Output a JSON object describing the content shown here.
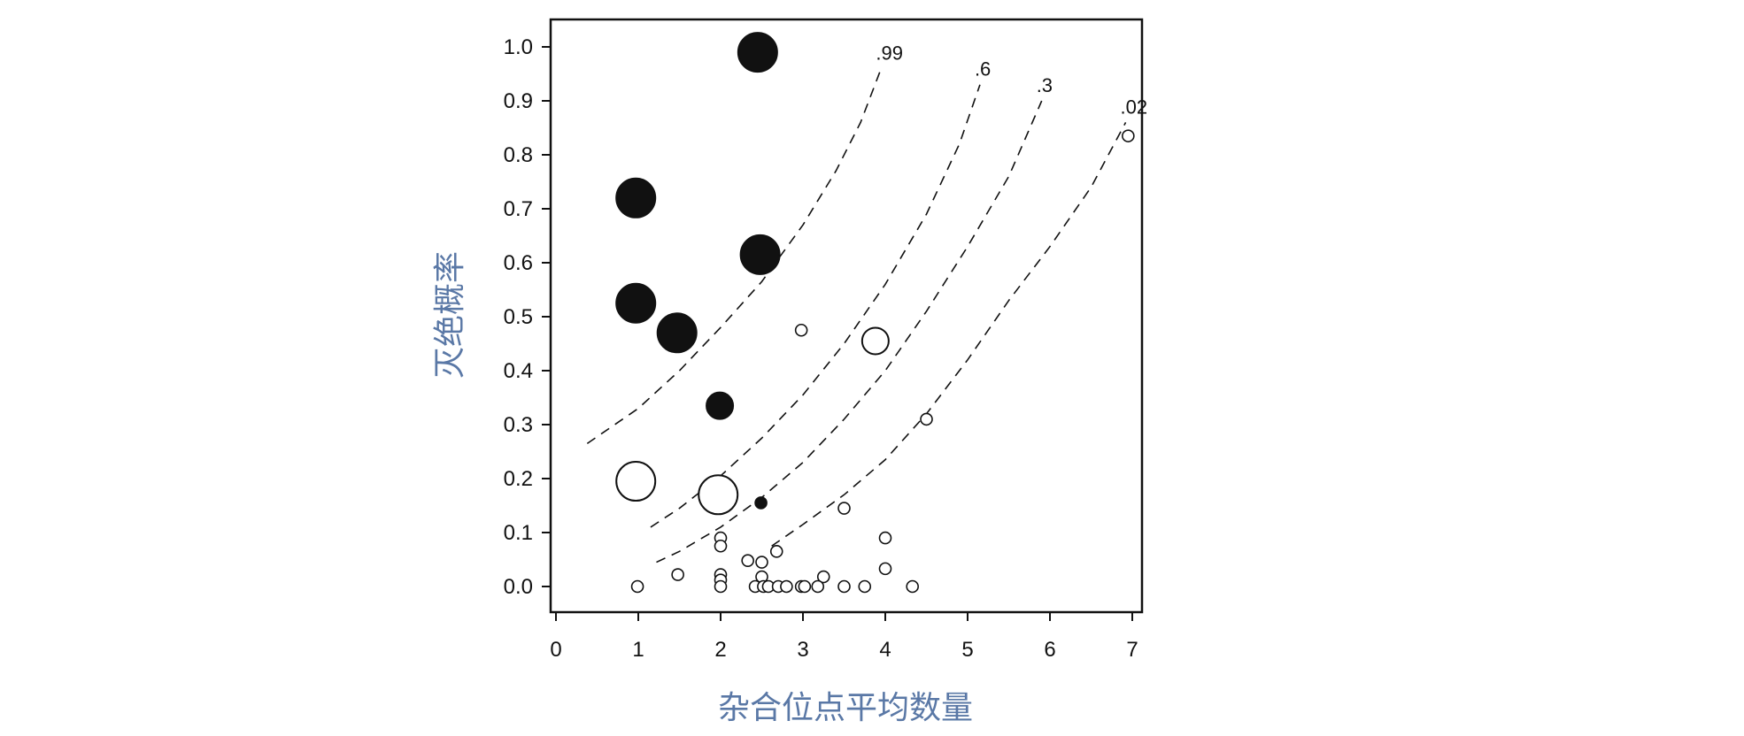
{
  "chart_data": {
    "type": "scatter",
    "title": "",
    "xlabel": "杂合位点平均数量",
    "ylabel": "灭绝概率",
    "xlim": [
      0,
      7.3
    ],
    "ylim": [
      -0.05,
      1.05
    ],
    "xticks": [
      "0",
      "1",
      "2",
      "3",
      "4",
      "5",
      "6",
      "7"
    ],
    "yticks": [
      "0.0",
      "0.1",
      "0.2",
      "0.3",
      "0.4",
      "0.5",
      "0.6",
      "0.7",
      "0.8",
      "0.9",
      "1.0"
    ],
    "grid": false,
    "colors": {
      "axis_title": "#5a78a6",
      "ink": "#111111",
      "hollow_fill": "#ffffff"
    },
    "points": [
      {
        "x": 2.45,
        "y": 0.99,
        "size": "large",
        "filled": true
      },
      {
        "x": 0.97,
        "y": 0.72,
        "size": "large",
        "filled": true
      },
      {
        "x": 2.48,
        "y": 0.615,
        "size": "large",
        "filled": true
      },
      {
        "x": 0.97,
        "y": 0.525,
        "size": "large",
        "filled": true
      },
      {
        "x": 1.47,
        "y": 0.47,
        "size": "large",
        "filled": true
      },
      {
        "x": 1.99,
        "y": 0.335,
        "size": "medium",
        "filled": true
      },
      {
        "x": 2.49,
        "y": 0.155,
        "size": "small",
        "filled": true
      },
      {
        "x": 0.97,
        "y": 0.195,
        "size": "large",
        "filled": false
      },
      {
        "x": 1.97,
        "y": 0.17,
        "size": "large",
        "filled": false
      },
      {
        "x": 3.88,
        "y": 0.455,
        "size": "medium",
        "filled": false
      },
      {
        "x": 2.98,
        "y": 0.475,
        "size": "small",
        "filled": false
      },
      {
        "x": 4.5,
        "y": 0.31,
        "size": "small",
        "filled": false
      },
      {
        "x": 6.95,
        "y": 0.835,
        "size": "small",
        "filled": false
      },
      {
        "x": 3.5,
        "y": 0.145,
        "size": "small",
        "filled": false
      },
      {
        "x": 2.0,
        "y": 0.09,
        "size": "small",
        "filled": false
      },
      {
        "x": 2.0,
        "y": 0.075,
        "size": "small",
        "filled": false
      },
      {
        "x": 4.0,
        "y": 0.09,
        "size": "small",
        "filled": false
      },
      {
        "x": 2.68,
        "y": 0.065,
        "size": "small",
        "filled": false
      },
      {
        "x": 2.33,
        "y": 0.048,
        "size": "small",
        "filled": false
      },
      {
        "x": 2.5,
        "y": 0.045,
        "size": "small",
        "filled": false
      },
      {
        "x": 4.0,
        "y": 0.033,
        "size": "small",
        "filled": false
      },
      {
        "x": 1.48,
        "y": 0.022,
        "size": "small",
        "filled": false
      },
      {
        "x": 2.0,
        "y": 0.022,
        "size": "small",
        "filled": false
      },
      {
        "x": 2.0,
        "y": 0.012,
        "size": "small",
        "filled": false
      },
      {
        "x": 2.5,
        "y": 0.018,
        "size": "small",
        "filled": false
      },
      {
        "x": 3.25,
        "y": 0.018,
        "size": "small",
        "filled": false
      },
      {
        "x": 0.99,
        "y": 0.0,
        "size": "small",
        "filled": false
      },
      {
        "x": 2.0,
        "y": 0.0,
        "size": "small",
        "filled": false
      },
      {
        "x": 2.42,
        "y": 0.0,
        "size": "small",
        "filled": false
      },
      {
        "x": 2.52,
        "y": 0.0,
        "size": "small",
        "filled": false
      },
      {
        "x": 2.58,
        "y": 0.0,
        "size": "small",
        "filled": false
      },
      {
        "x": 2.7,
        "y": 0.0,
        "size": "small",
        "filled": false
      },
      {
        "x": 2.8,
        "y": 0.0,
        "size": "small",
        "filled": false
      },
      {
        "x": 2.98,
        "y": 0.0,
        "size": "small",
        "filled": false
      },
      {
        "x": 3.02,
        "y": 0.0,
        "size": "small",
        "filled": false
      },
      {
        "x": 3.18,
        "y": 0.0,
        "size": "small",
        "filled": false
      },
      {
        "x": 3.5,
        "y": 0.0,
        "size": "small",
        "filled": false
      },
      {
        "x": 3.75,
        "y": 0.0,
        "size": "small",
        "filled": false
      },
      {
        "x": 4.33,
        "y": 0.0,
        "size": "small",
        "filled": false
      }
    ],
    "curves": [
      {
        "label": ".99",
        "points": [
          [
            0.38,
            0.265
          ],
          [
            1.0,
            0.33
          ],
          [
            1.5,
            0.4
          ],
          [
            2.0,
            0.48
          ],
          [
            2.5,
            0.565
          ],
          [
            3.0,
            0.67
          ],
          [
            3.4,
            0.77
          ],
          [
            3.7,
            0.86
          ],
          [
            3.95,
            0.96
          ]
        ]
      },
      {
        "label": ".6",
        "points": [
          [
            1.15,
            0.11
          ],
          [
            1.5,
            0.145
          ],
          [
            2.0,
            0.205
          ],
          [
            2.5,
            0.275
          ],
          [
            3.0,
            0.355
          ],
          [
            3.5,
            0.45
          ],
          [
            4.0,
            0.56
          ],
          [
            4.5,
            0.69
          ],
          [
            4.9,
            0.82
          ],
          [
            5.15,
            0.93
          ]
        ]
      },
      {
        "label": ".3",
        "points": [
          [
            1.22,
            0.045
          ],
          [
            1.5,
            0.065
          ],
          [
            2.0,
            0.11
          ],
          [
            2.5,
            0.165
          ],
          [
            3.0,
            0.23
          ],
          [
            3.5,
            0.31
          ],
          [
            4.0,
            0.4
          ],
          [
            4.5,
            0.51
          ],
          [
            5.0,
            0.63
          ],
          [
            5.5,
            0.76
          ],
          [
            5.9,
            0.9
          ]
        ]
      },
      {
        "label": ".02",
        "points": [
          [
            2.62,
            0.075
          ],
          [
            3.0,
            0.115
          ],
          [
            3.5,
            0.17
          ],
          [
            4.0,
            0.235
          ],
          [
            4.5,
            0.32
          ],
          [
            5.0,
            0.42
          ],
          [
            5.5,
            0.53
          ],
          [
            6.0,
            0.63
          ],
          [
            6.5,
            0.74
          ],
          [
            6.92,
            0.86
          ]
        ]
      }
    ]
  }
}
